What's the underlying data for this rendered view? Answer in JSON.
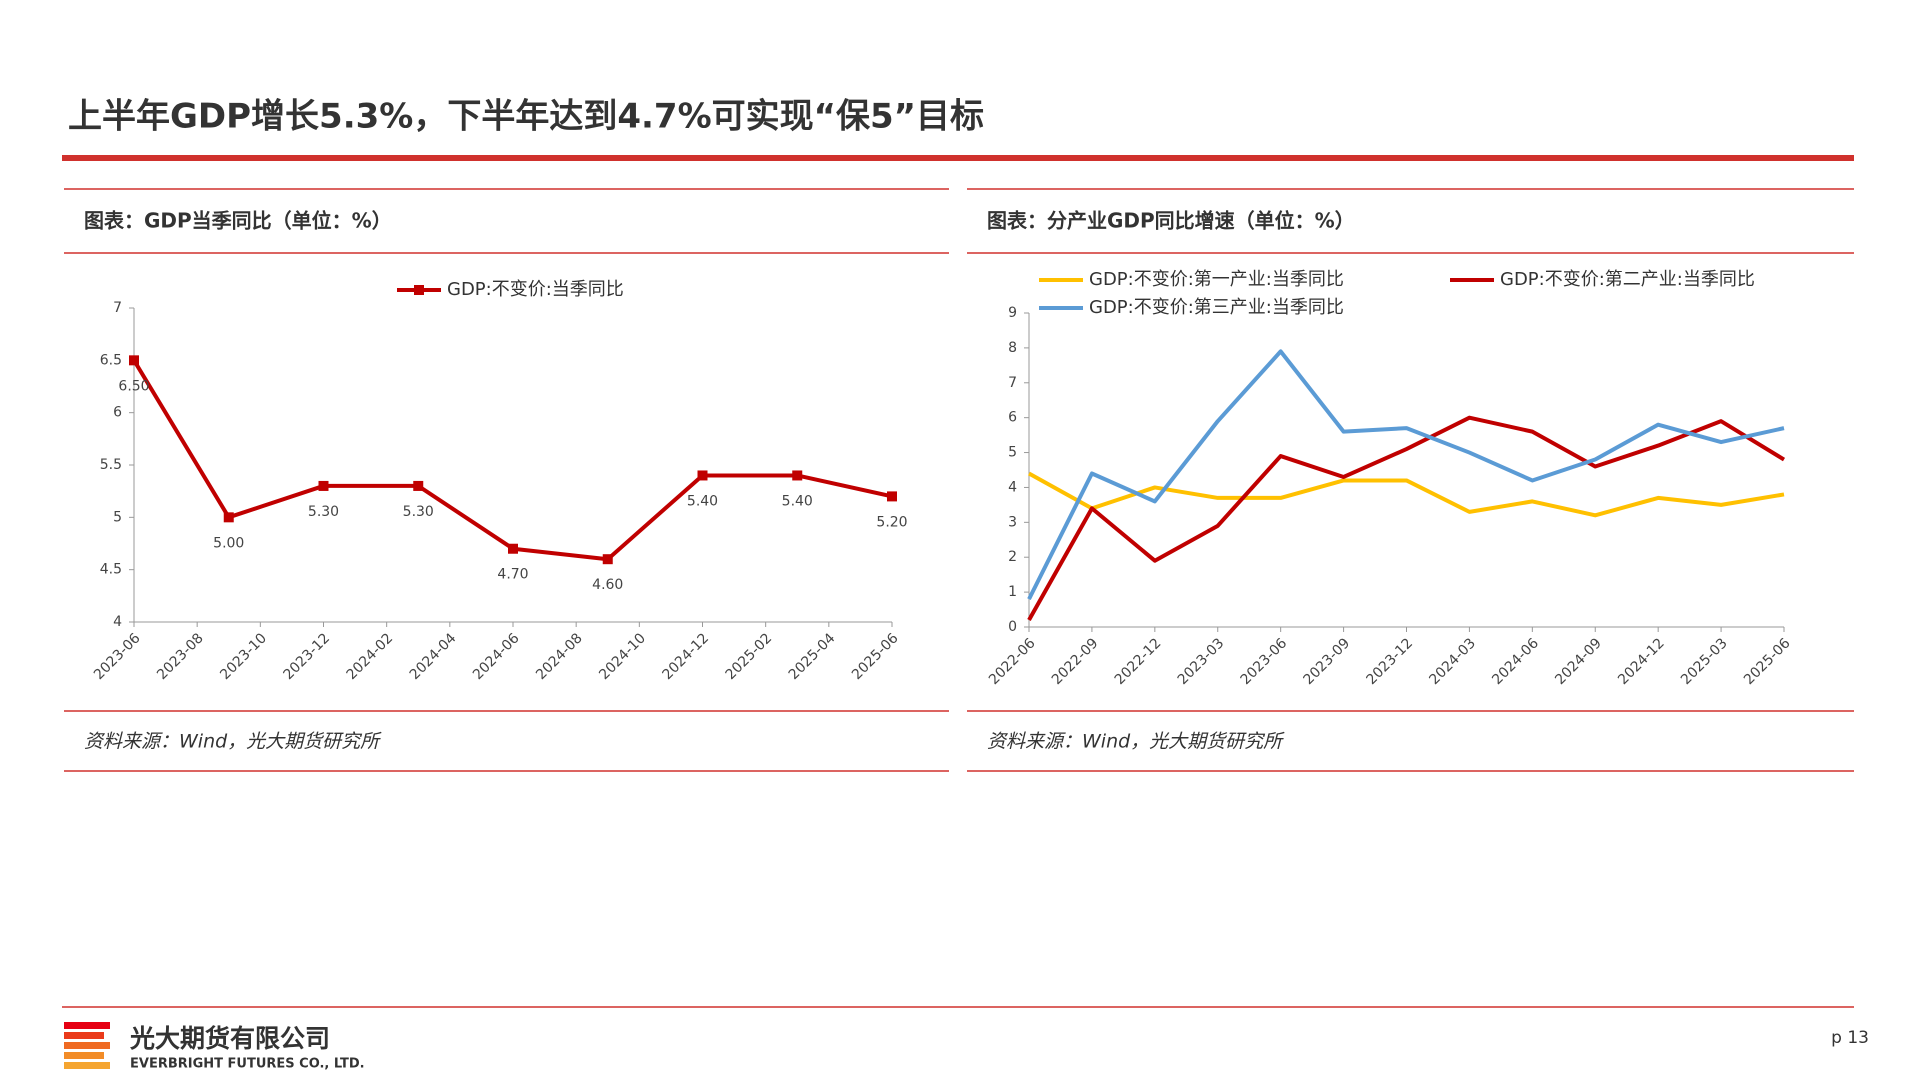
{
  "header": {
    "title": "上半年GDP增长5.3%，下半年达到4.7%可实现“保5”目标"
  },
  "chart_data": [
    {
      "type": "line",
      "caption": "图表：GDP当季同比（单位：%）",
      "source": "资料来源：Wind，光大期货研究所",
      "x": [
        "2023-06",
        "2023-09",
        "2023-12",
        "2024-03",
        "2024-06",
        "2024-09",
        "2024-12",
        "2025-03",
        "2025-06"
      ],
      "xticks": [
        "2023-06",
        "2023-08",
        "2023-10",
        "2023-12",
        "2024-02",
        "2024-04",
        "2024-06",
        "2024-08",
        "2024-10",
        "2024-12",
        "2025-02",
        "2025-04",
        "2025-06"
      ],
      "series": [
        {
          "name": "GDP:不变价:当季同比",
          "color": "#c00000",
          "marker": "square",
          "values": [
            6.5,
            5.0,
            5.3,
            5.3,
            4.7,
            4.6,
            5.4,
            5.4,
            5.2
          ],
          "value_labels": [
            "6.50",
            "5.00",
            "5.30",
            "5.30",
            "4.70",
            "4.60",
            "5.40",
            "5.40",
            "5.20"
          ]
        }
      ],
      "ylim": [
        4,
        7
      ],
      "yticks": [
        4,
        4.5,
        5,
        5.5,
        6,
        6.5,
        7
      ]
    },
    {
      "type": "line",
      "caption": "图表：分产业GDP同比增速（单位：%）",
      "source": "资料来源：Wind，光大期货研究所",
      "categories": [
        "2022-06",
        "2022-09",
        "2022-12",
        "2023-03",
        "2023-06",
        "2023-09",
        "2023-12",
        "2024-03",
        "2024-06",
        "2024-09",
        "2024-12",
        "2025-03",
        "2025-06"
      ],
      "series": [
        {
          "name": "GDP:不变价:第一产业:当季同比",
          "color": "#ffc000",
          "values": [
            4.4,
            3.4,
            4.0,
            3.7,
            3.7,
            4.2,
            4.2,
            3.3,
            3.6,
            3.2,
            3.7,
            3.5,
            3.8
          ]
        },
        {
          "name": "GDP:不变价:第二产业:当季同比",
          "color": "#c00000",
          "values": [
            0.2,
            3.4,
            1.9,
            2.9,
            4.9,
            4.3,
            5.1,
            6.0,
            5.6,
            4.6,
            5.2,
            5.9,
            4.8
          ]
        },
        {
          "name": "GDP:不变价:第三产业:当季同比",
          "color": "#5b9bd5",
          "values": [
            0.8,
            4.4,
            3.6,
            5.9,
            7.9,
            5.6,
            5.7,
            5.0,
            4.2,
            4.8,
            5.8,
            5.3,
            5.7
          ]
        }
      ],
      "ylim": [
        0,
        9
      ],
      "yticks": [
        0,
        1,
        2,
        3,
        4,
        5,
        6,
        7,
        8,
        9
      ]
    }
  ],
  "footer": {
    "company": "光大期货有限公司",
    "company_en": "EVERBRIGHT FUTURES CO., LTD.",
    "page": "p 13"
  }
}
